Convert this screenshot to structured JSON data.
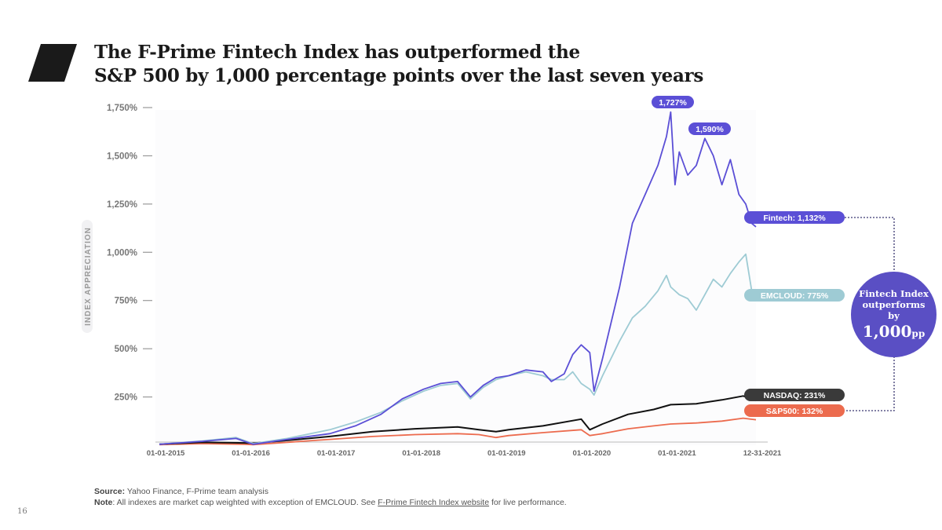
{
  "page": {
    "title_line1": "The F-Prime Fintech Index has outperformed the",
    "title_line2": "S&P 500 by 1,000 percentage points over the last seven years",
    "page_number": "16"
  },
  "footer": {
    "source_label": "Source:",
    "source_text": " Yahoo Finance, F-Prime team analysis",
    "note_label": "Note",
    "note_text": ": All indexes are market cap weighted with exception of EMCLOUD. See ",
    "note_link": "F-Prime Fintech Index website",
    "note_tail": " for live performance."
  },
  "callout": {
    "line1": "Fintech Index",
    "line2": "outperforms",
    "line3": "by",
    "big_value": "1,000",
    "big_unit": "pp"
  },
  "colors": {
    "fintech": "#5b4fd6",
    "emcloud": "#9ecbd4",
    "nasdaq": "#111111",
    "sp500": "#ec6b4e",
    "callout": "#5a4fc4",
    "nasdaq_label_bg": "#3a3a3a"
  },
  "chart_data": {
    "type": "line",
    "ylabel": "INDEX APPRECIATION",
    "ylim": [
      0,
      1750
    ],
    "y_ticks": [
      250,
      500,
      750,
      1000,
      1250,
      1500,
      1750
    ],
    "y_tick_labels": [
      "250%",
      "500%",
      "750%",
      "1,000%",
      "1,250%",
      "1,500%",
      "1,750%"
    ],
    "x_range": [
      2015.0,
      2022.0
    ],
    "x_ticks": [
      2015.0,
      2016.0,
      2017.0,
      2018.0,
      2019.0,
      2020.0,
      2021.0,
      2022.0
    ],
    "x_tick_labels": [
      "01-01-2015",
      "01-01-2016",
      "01-01-2017",
      "01-01-2018",
      "01-01-2019",
      "01-01-2020",
      "01-01-2021",
      "12-31-2021"
    ],
    "series": [
      {
        "name": "Fintech",
        "end_label": "Fintech: 1,132%",
        "color_key": "fintech",
        "x": [
          2015.0,
          2015.5,
          2015.9,
          2016.1,
          2016.5,
          2017.0,
          2017.3,
          2017.6,
          2017.85,
          2018.1,
          2018.3,
          2018.5,
          2018.65,
          2018.8,
          2018.95,
          2019.1,
          2019.3,
          2019.5,
          2019.6,
          2019.75,
          2019.85,
          2019.95,
          2020.05,
          2020.1,
          2020.2,
          2020.4,
          2020.55,
          2020.7,
          2020.85,
          2020.95,
          2021.0,
          2021.05,
          2021.1,
          2021.2,
          2021.3,
          2021.4,
          2021.5,
          2021.6,
          2021.7,
          2021.8,
          2021.88,
          2021.95,
          2022.0
        ],
        "values": [
          5,
          20,
          35,
          5,
          30,
          60,
          100,
          160,
          240,
          290,
          320,
          330,
          250,
          310,
          350,
          360,
          390,
          380,
          330,
          370,
          470,
          520,
          480,
          280,
          450,
          820,
          1150,
          1300,
          1450,
          1600,
          1727,
          1350,
          1520,
          1400,
          1450,
          1590,
          1500,
          1350,
          1480,
          1300,
          1250,
          1150,
          1132
        ]
      },
      {
        "name": "EMCLOUD",
        "end_label": "EMCLOUD: 775%",
        "color_key": "emcloud",
        "x": [
          2015.0,
          2015.5,
          2015.9,
          2016.1,
          2016.5,
          2017.0,
          2017.3,
          2017.6,
          2017.85,
          2018.1,
          2018.3,
          2018.5,
          2018.65,
          2018.8,
          2018.95,
          2019.1,
          2019.3,
          2019.5,
          2019.6,
          2019.75,
          2019.85,
          2019.95,
          2020.05,
          2020.1,
          2020.2,
          2020.4,
          2020.55,
          2020.7,
          2020.85,
          2020.95,
          2021.0,
          2021.1,
          2021.2,
          2021.3,
          2021.4,
          2021.5,
          2021.6,
          2021.7,
          2021.8,
          2021.88,
          2021.95,
          2022.0
        ],
        "values": [
          5,
          22,
          40,
          8,
          35,
          80,
          120,
          170,
          230,
          280,
          310,
          320,
          240,
          300,
          340,
          360,
          380,
          360,
          340,
          340,
          380,
          320,
          290,
          260,
          360,
          540,
          660,
          720,
          800,
          880,
          820,
          780,
          760,
          700,
          780,
          860,
          820,
          890,
          950,
          990,
          800,
          775
        ]
      },
      {
        "name": "NASDAQ",
        "end_label": "NASDAQ: 231%",
        "color_key": "nasdaq",
        "x": [
          2015.0,
          2015.5,
          2016.0,
          2016.1,
          2016.5,
          2017.0,
          2017.5,
          2018.0,
          2018.5,
          2018.75,
          2018.95,
          2019.1,
          2019.5,
          2019.95,
          2020.05,
          2020.2,
          2020.5,
          2020.8,
          2021.0,
          2021.3,
          2021.6,
          2021.85,
          2022.0
        ],
        "values": [
          5,
          15,
          12,
          10,
          25,
          45,
          70,
          85,
          95,
          80,
          70,
          80,
          100,
          135,
          80,
          110,
          160,
          185,
          210,
          215,
          235,
          255,
          231
        ]
      },
      {
        "name": "S&P500",
        "end_label": "S&P500: 132%",
        "color_key": "sp500",
        "x": [
          2015.0,
          2015.5,
          2016.0,
          2016.1,
          2016.5,
          2017.0,
          2017.5,
          2018.0,
          2018.5,
          2018.75,
          2018.95,
          2019.1,
          2019.5,
          2019.95,
          2020.05,
          2020.2,
          2020.5,
          2020.8,
          2021.0,
          2021.3,
          2021.6,
          2021.85,
          2022.0
        ],
        "values": [
          3,
          8,
          5,
          3,
          15,
          30,
          45,
          55,
          60,
          55,
          40,
          50,
          65,
          80,
          50,
          60,
          85,
          100,
          110,
          115,
          125,
          140,
          132
        ]
      }
    ],
    "annotations": [
      {
        "text": "1,727%",
        "x": 2021.0,
        "y": 1727
      },
      {
        "text": "1,590%",
        "x": 2021.4,
        "y": 1590
      }
    ]
  }
}
